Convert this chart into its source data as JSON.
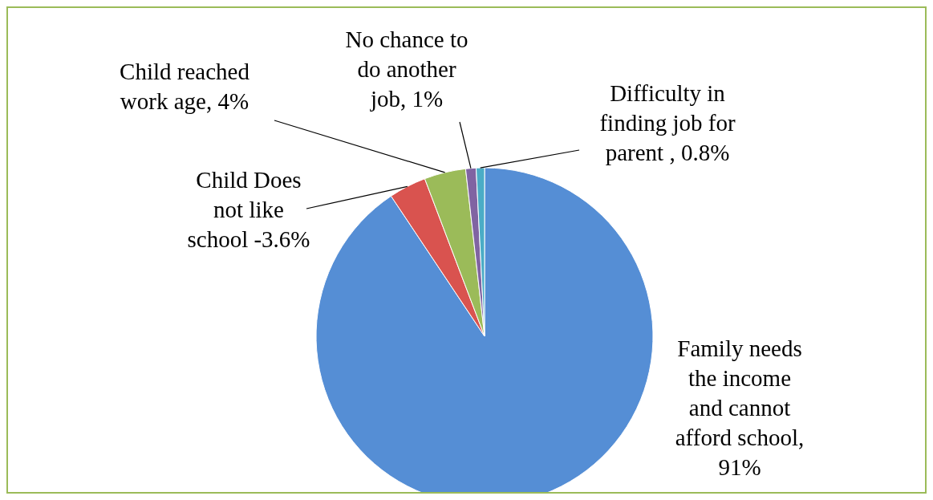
{
  "chart_data": {
    "type": "pie",
    "categories": [
      "Family needs the income and cannot afford school, 91%",
      "Child Does not like school -3.6%",
      "Child reached work age, 4%",
      "No chance to do another job, 1%",
      "Difficulty in finding job for parent , 0.8%"
    ],
    "values": [
      91,
      3.6,
      4,
      1,
      0.8
    ],
    "colors": [
      "#558ed5",
      "#d9534f",
      "#9bbb59",
      "#8064a2",
      "#4bacc6"
    ],
    "legend": false
  }
}
